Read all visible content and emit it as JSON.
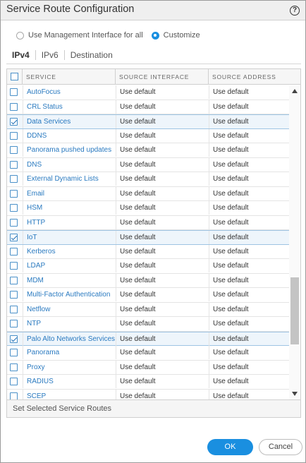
{
  "dialog": {
    "title": "Service Route Configuration",
    "help_icon_text": "?"
  },
  "mode": {
    "options": [
      {
        "label": "Use Management Interface for all",
        "selected": false
      },
      {
        "label": "Customize",
        "selected": true
      }
    ]
  },
  "tabs": [
    {
      "label": "IPv4",
      "active": true
    },
    {
      "label": "IPv6",
      "active": false
    },
    {
      "label": "Destination",
      "active": false
    }
  ],
  "table": {
    "columns": [
      "SERVICE",
      "SOURCE INTERFACE",
      "SOURCE ADDRESS"
    ],
    "rows": [
      {
        "service": "AutoFocus",
        "source_interface": "Use default",
        "source_address": "Use default",
        "checked": false
      },
      {
        "service": "CRL Status",
        "source_interface": "Use default",
        "source_address": "Use default",
        "checked": false
      },
      {
        "service": "Data Services",
        "source_interface": "Use default",
        "source_address": "Use default",
        "checked": true
      },
      {
        "service": "DDNS",
        "source_interface": "Use default",
        "source_address": "Use default",
        "checked": false
      },
      {
        "service": "Panorama pushed updates",
        "source_interface": "Use default",
        "source_address": "Use default",
        "checked": false
      },
      {
        "service": "DNS",
        "source_interface": "Use default",
        "source_address": "Use default",
        "checked": false
      },
      {
        "service": "External Dynamic Lists",
        "source_interface": "Use default",
        "source_address": "Use default",
        "checked": false
      },
      {
        "service": "Email",
        "source_interface": "Use default",
        "source_address": "Use default",
        "checked": false
      },
      {
        "service": "HSM",
        "source_interface": "Use default",
        "source_address": "Use default",
        "checked": false
      },
      {
        "service": "HTTP",
        "source_interface": "Use default",
        "source_address": "Use default",
        "checked": false
      },
      {
        "service": "IoT",
        "source_interface": "Use default",
        "source_address": "Use default",
        "checked": true
      },
      {
        "service": "Kerberos",
        "source_interface": "Use default",
        "source_address": "Use default",
        "checked": false
      },
      {
        "service": "LDAP",
        "source_interface": "Use default",
        "source_address": "Use default",
        "checked": false
      },
      {
        "service": "MDM",
        "source_interface": "Use default",
        "source_address": "Use default",
        "checked": false
      },
      {
        "service": "Multi-Factor Authentication",
        "source_interface": "Use default",
        "source_address": "Use default",
        "checked": false
      },
      {
        "service": "Netflow",
        "source_interface": "Use default",
        "source_address": "Use default",
        "checked": false
      },
      {
        "service": "NTP",
        "source_interface": "Use default",
        "source_address": "Use default",
        "checked": false
      },
      {
        "service": "Palo Alto Networks Services",
        "source_interface": "Use default",
        "source_address": "Use default",
        "checked": true
      },
      {
        "service": "Panorama",
        "source_interface": "Use default",
        "source_address": "Use default",
        "checked": false
      },
      {
        "service": "Proxy",
        "source_interface": "Use default",
        "source_address": "Use default",
        "checked": false
      },
      {
        "service": "RADIUS",
        "source_interface": "Use default",
        "source_address": "Use default",
        "checked": false
      },
      {
        "service": "SCEP",
        "source_interface": "Use default",
        "source_address": "Use default",
        "checked": false
      }
    ]
  },
  "footer": {
    "label": "Set Selected Service Routes"
  },
  "buttons": {
    "ok": "OK",
    "cancel": "Cancel"
  },
  "colors": {
    "accent": "#1a8fe0",
    "link": "#2a7ac0",
    "selected_row": "#eef5fb"
  }
}
